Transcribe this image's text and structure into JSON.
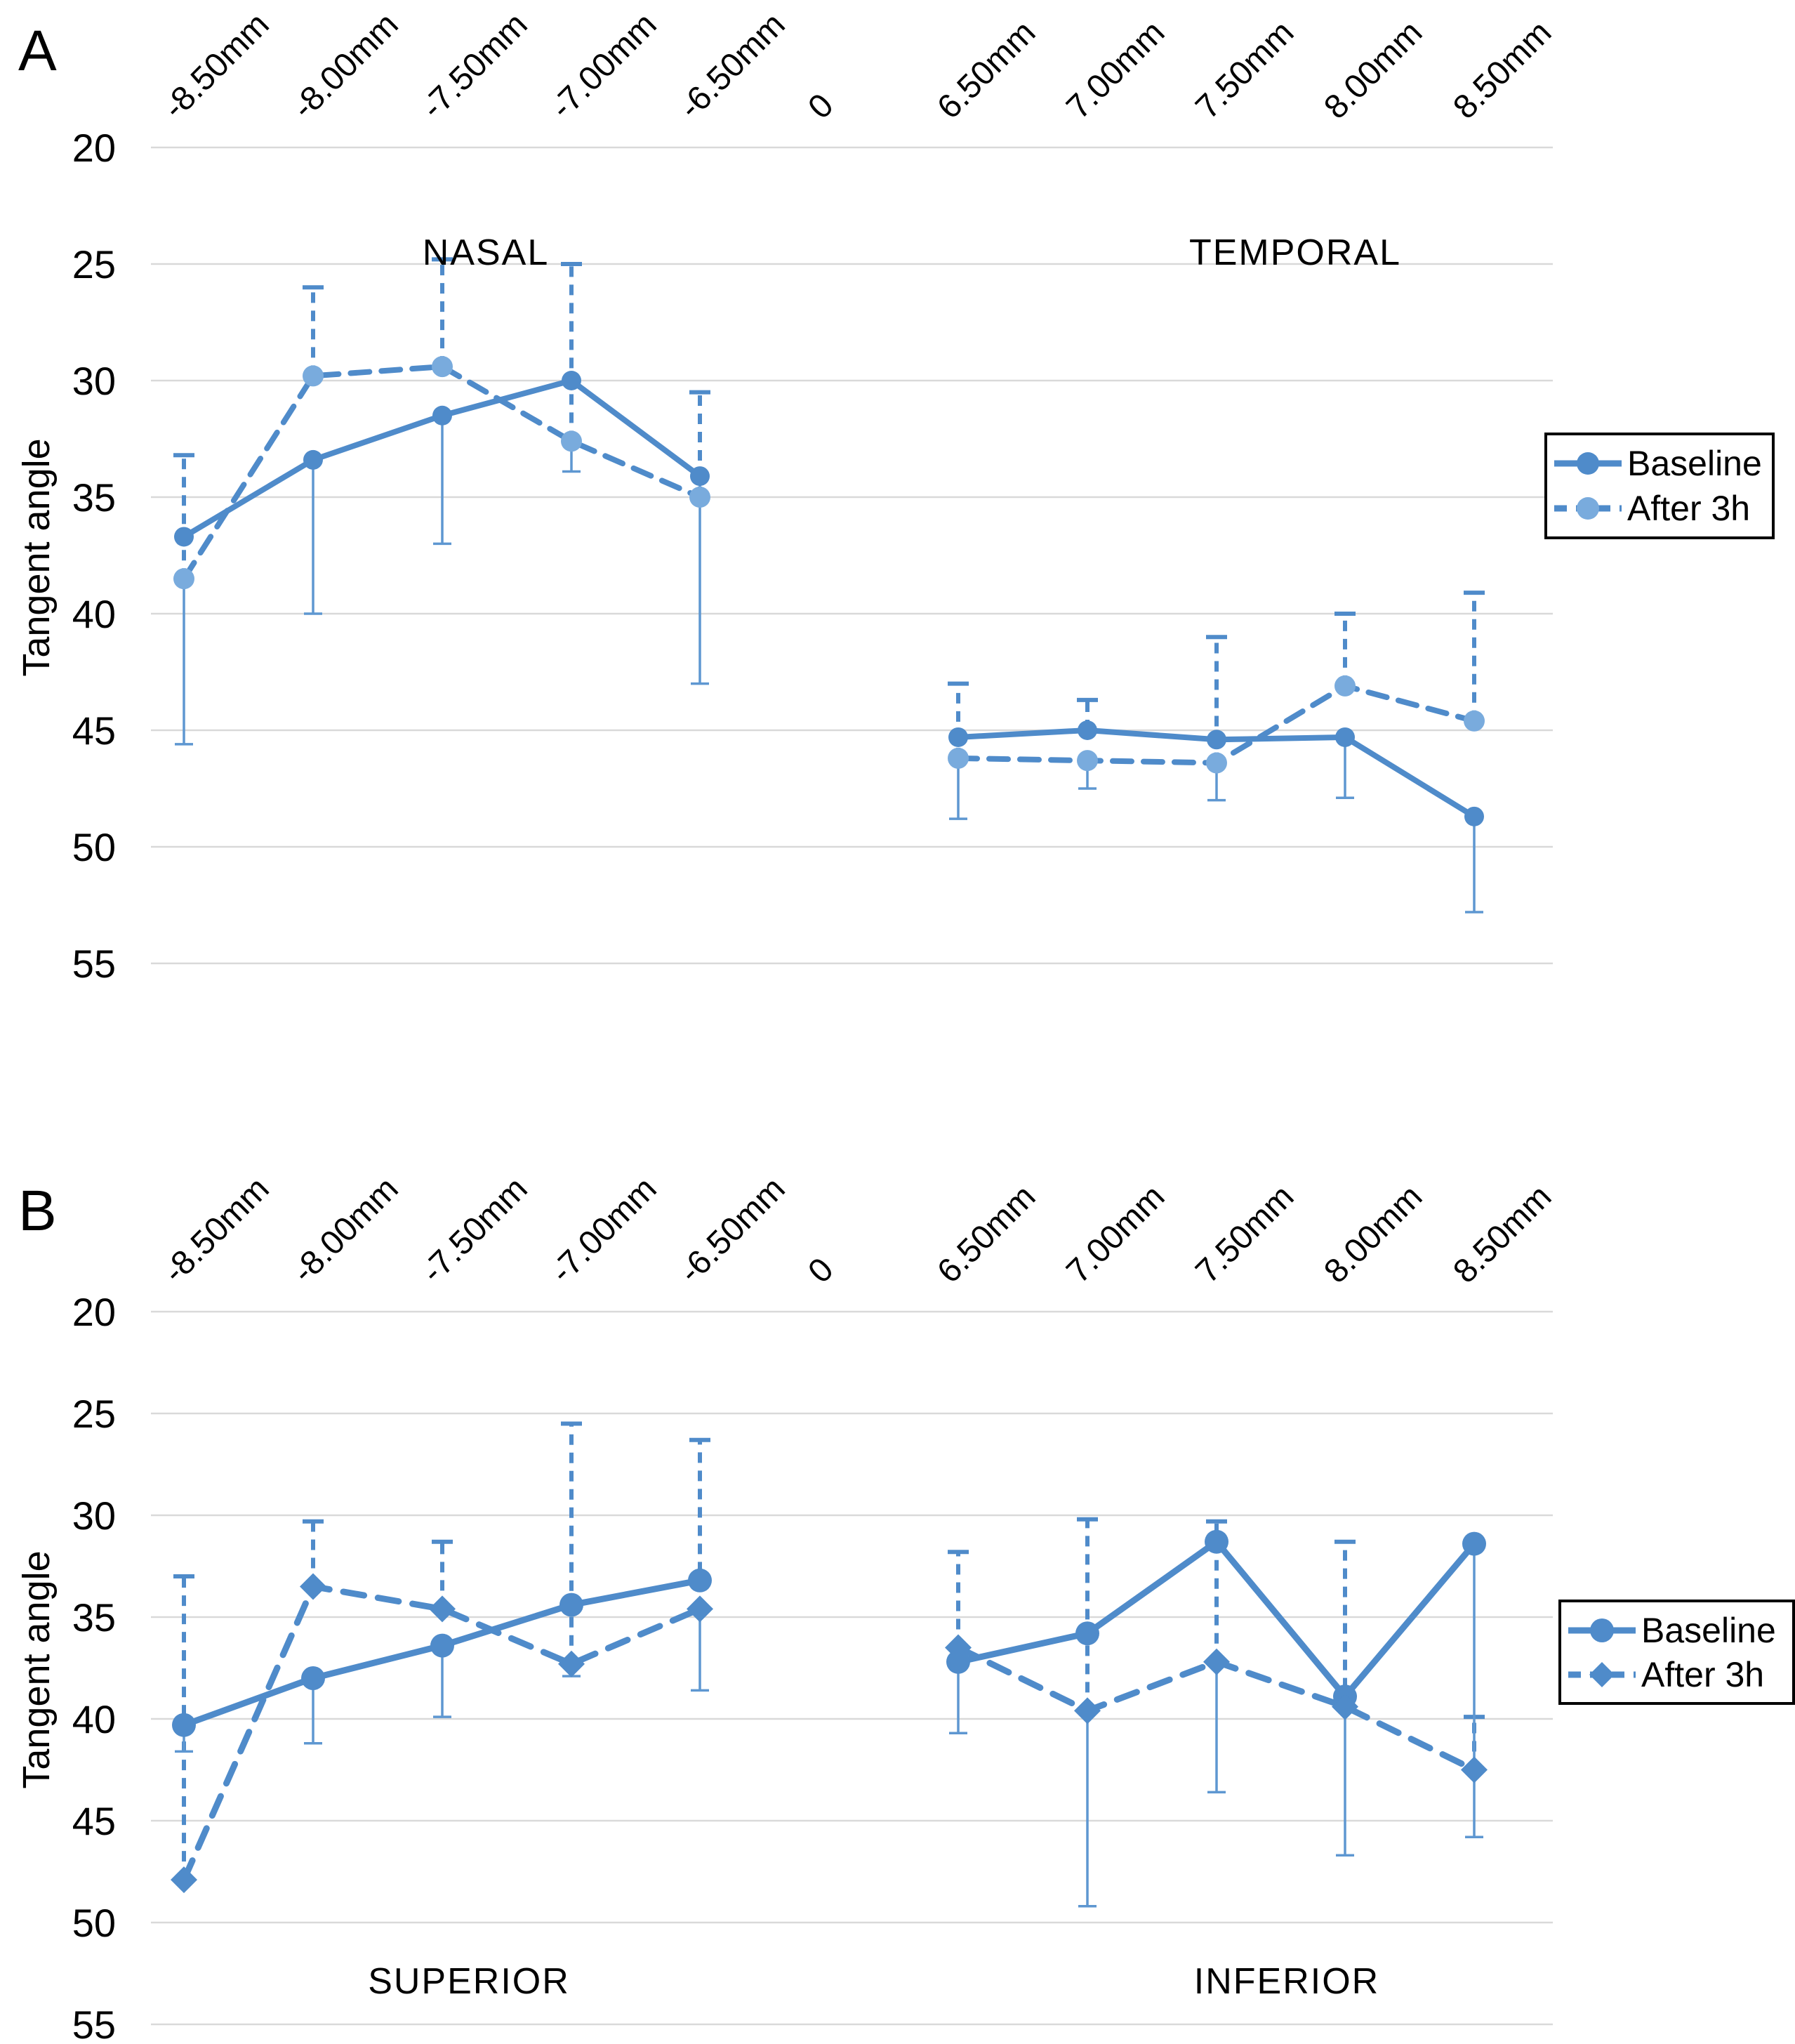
{
  "figure": {
    "background": "#ffffff",
    "colors": {
      "series_main": "#4f8bca",
      "series_light": "#79abdd",
      "error_bar": "#5e97d1",
      "gridline": "#d9d9d9",
      "text": "#000000",
      "legend_border": "#000000"
    }
  },
  "chart_data": {
    "type": "line",
    "ylabel": "Tangent angle",
    "ylim": [
      20,
      55
    ],
    "y_ticks": [
      20,
      25,
      30,
      35,
      40,
      45,
      50,
      55
    ],
    "x_tick_labels": [
      "-8.50mm",
      "-8.00mm",
      "-7.50mm",
      "-7.00mm",
      "-6.50mm",
      "0",
      "6.50mm",
      "7.00mm",
      "7.50mm",
      "8.00mm",
      "8.50mm"
    ],
    "grid": true,
    "legend_position": "right",
    "panels": [
      {
        "panel_letter": "A",
        "left_region_label": "NASAL",
        "right_region_label": "TEMPORAL",
        "region_label_position": "top",
        "series": [
          {
            "name": "Baseline",
            "style": "solid",
            "marker": "circle",
            "values": [
              36.7,
              33.4,
              31.5,
              30.0,
              34.1,
              null,
              45.3,
              45.0,
              45.4,
              45.3,
              48.7
            ]
          },
          {
            "name": "After 3h",
            "style": "dashed",
            "marker": "circle-light",
            "values": [
              38.5,
              29.8,
              29.4,
              32.6,
              35.0,
              null,
              46.2,
              46.3,
              46.4,
              43.1,
              44.6
            ]
          }
        ],
        "error_bars": [
          {
            "col": 0,
            "up": [
              38.5,
              33.2
            ],
            "down": [
              38.5,
              45.6
            ]
          },
          {
            "col": 1,
            "up": [
              29.8,
              26.0
            ],
            "down": [
              33.4,
              40.0
            ]
          },
          {
            "col": 2,
            "up": [
              29.4,
              24.8
            ],
            "down": [
              31.5,
              37.0
            ]
          },
          {
            "col": 3,
            "up": [
              32.6,
              25.0
            ],
            "down": [
              32.6,
              33.9
            ]
          },
          {
            "col": 4,
            "up": [
              35.0,
              30.5
            ],
            "down": [
              34.1,
              43.0
            ]
          },
          {
            "col": 6,
            "up": [
              46.2,
              43.0
            ],
            "down": [
              46.2,
              48.8
            ]
          },
          {
            "col": 7,
            "up": [
              45.0,
              43.7
            ],
            "down": [
              46.3,
              47.5
            ]
          },
          {
            "col": 8,
            "up": [
              46.4,
              41.0
            ],
            "down": [
              46.4,
              48.0
            ]
          },
          {
            "col": 9,
            "up": [
              43.1,
              40.0
            ],
            "down": [
              45.3,
              47.9
            ]
          },
          {
            "col": 10,
            "up": [
              44.6,
              39.1
            ],
            "down": [
              48.7,
              52.8
            ]
          }
        ]
      },
      {
        "panel_letter": "B",
        "left_region_label": "SUPERIOR",
        "right_region_label": "INFERIOR",
        "region_label_position": "bottom",
        "series": [
          {
            "name": "Baseline",
            "style": "solid",
            "marker": "circle",
            "values": [
              40.3,
              38.0,
              36.4,
              34.4,
              33.2,
              null,
              37.2,
              35.8,
              31.3,
              38.9,
              31.4
            ]
          },
          {
            "name": "After 3h",
            "style": "dashed",
            "marker": "diamond",
            "values": [
              47.9,
              33.5,
              34.6,
              37.3,
              34.6,
              null,
              36.5,
              39.6,
              37.2,
              39.4,
              42.5
            ]
          }
        ],
        "error_bars": [
          {
            "col": 0,
            "up": [
              47.9,
              33.0
            ],
            "down": [
              40.3,
              41.6
            ]
          },
          {
            "col": 1,
            "up": [
              33.5,
              30.3
            ],
            "down": [
              38.0,
              41.2
            ]
          },
          {
            "col": 2,
            "up": [
              34.6,
              31.3
            ],
            "down": [
              36.4,
              39.9
            ]
          },
          {
            "col": 3,
            "up": [
              37.3,
              25.5
            ],
            "down": [
              37.3,
              37.9
            ]
          },
          {
            "col": 4,
            "up": [
              34.6,
              26.3
            ],
            "down": [
              34.6,
              38.6
            ]
          },
          {
            "col": 6,
            "up": [
              36.5,
              31.8
            ],
            "down": [
              37.2,
              40.7
            ]
          },
          {
            "col": 7,
            "up": [
              39.6,
              30.2
            ],
            "down": [
              39.6,
              49.2
            ]
          },
          {
            "col": 8,
            "up": [
              37.2,
              30.3
            ],
            "down": [
              37.2,
              43.6
            ]
          },
          {
            "col": 9,
            "up": [
              39.4,
              31.3
            ],
            "down": [
              39.4,
              46.7
            ]
          },
          {
            "col": 10,
            "up": [
              42.5,
              39.9
            ],
            "down": [
              31.4,
              45.8
            ]
          }
        ]
      }
    ]
  }
}
